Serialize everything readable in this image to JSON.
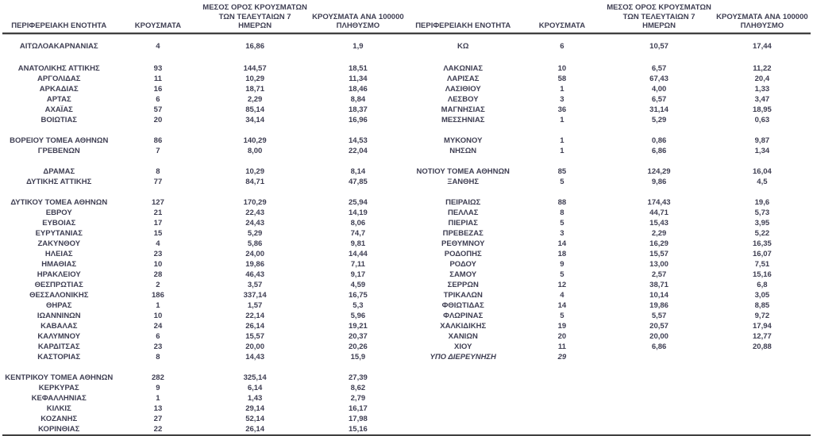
{
  "header": {
    "col_region": "ΠΕΡΙΦΕΡΕΙΑΚΗ ΕΝΟΤΗΤΑ",
    "col_cases": "ΚΡΟΥΣΜΑΤΑ",
    "col_avg_line1": "ΜΕΣΟΣ ΟΡΟΣ ΚΡΟΥΣΜΑΤΩΝ",
    "col_avg_line2": "ΤΩΝ ΤΕΛΕΥΤΑΙΩΝ 7",
    "col_avg_line3": "ΗΜΕΡΩΝ",
    "col_rate_line1": "ΚΡΟΥΣΜΑΤΑ ΑΝΑ 100000",
    "col_rate_line2": "ΠΛΗΘΥΣΜΟ"
  },
  "colors": {
    "text": "#3e3e52",
    "rule_dark": "#3f3f3f",
    "rule_light": "#c2c2c2",
    "background": "#ffffff"
  },
  "left_rows": [
    {
      "cells": [
        "ΑΙΤΩΛΟΑΚΑΡΝΑΝΙΑΣ",
        "4",
        "16,86",
        "1,9"
      ]
    },
    null,
    {
      "cells": [
        "ΑΝΑΤΟΛΙΚΗΣ ΑΤΤΙΚΗΣ",
        "93",
        "144,57",
        "18,51"
      ]
    },
    {
      "cells": [
        "ΑΡΓΟΛΙΔΑΣ",
        "11",
        "10,29",
        "11,34"
      ]
    },
    {
      "cells": [
        "ΑΡΚΑΔΙΑΣ",
        "16",
        "18,71",
        "18,46"
      ]
    },
    {
      "cells": [
        "ΑΡΤΑΣ",
        "6",
        "2,29",
        "8,84"
      ]
    },
    {
      "cells": [
        "ΑΧΑΪΑΣ",
        "57",
        "85,14",
        "18,37"
      ]
    },
    {
      "cells": [
        "ΒΟΙΩΤΙΑΣ",
        "20",
        "34,14",
        "16,96"
      ]
    },
    null,
    {
      "cells": [
        "ΒΟΡΕΙΟΥ ΤΟΜΕΑ ΑΘΗΝΩΝ",
        "86",
        "140,29",
        "14,53"
      ]
    },
    {
      "cells": [
        "ΓΡΕΒΕΝΩΝ",
        "7",
        "8,00",
        "22,04"
      ]
    },
    null,
    {
      "cells": [
        "ΔΡΑΜΑΣ",
        "8",
        "10,29",
        "8,14"
      ]
    },
    {
      "cells": [
        "ΔΥΤΙΚΗΣ ΑΤΤΙΚΗΣ",
        "77",
        "84,71",
        "47,85"
      ]
    },
    null,
    {
      "cells": [
        "ΔΥΤΙΚΟΥ ΤΟΜΕΑ ΑΘΗΝΩΝ",
        "127",
        "170,29",
        "25,94"
      ]
    },
    {
      "cells": [
        "ΕΒΡΟΥ",
        "21",
        "22,43",
        "14,19"
      ]
    },
    {
      "cells": [
        "ΕΥΒΟΙΑΣ",
        "17",
        "24,43",
        "8,06"
      ]
    },
    {
      "cells": [
        "ΕΥΡΥΤΑΝΙΑΣ",
        "15",
        "5,29",
        "74,7"
      ]
    },
    {
      "cells": [
        "ΖΑΚΥΝΘΟΥ",
        "4",
        "5,86",
        "9,81"
      ]
    },
    {
      "cells": [
        "ΗΛΕΙΑΣ",
        "23",
        "24,00",
        "14,44"
      ]
    },
    {
      "cells": [
        "ΗΜΑΘΙΑΣ",
        "10",
        "19,86",
        "7,11"
      ]
    },
    {
      "cells": [
        "ΗΡΑΚΛΕΙΟΥ",
        "28",
        "46,43",
        "9,17"
      ]
    },
    {
      "cells": [
        "ΘΕΣΠΡΩΤΙΑΣ",
        "2",
        "3,57",
        "4,59"
      ]
    },
    {
      "cells": [
        "ΘΕΣΣΑΛΟΝΙΚΗΣ",
        "186",
        "337,14",
        "16,75"
      ]
    },
    {
      "cells": [
        "ΘΗΡΑΣ",
        "1",
        "1,57",
        "5,3"
      ]
    },
    {
      "cells": [
        "ΙΩΑΝΝΙΝΩΝ",
        "10",
        "22,14",
        "5,96"
      ]
    },
    {
      "cells": [
        "ΚΑΒΑΛΑΣ",
        "24",
        "26,14",
        "19,21"
      ]
    },
    {
      "cells": [
        "ΚΑΛΥΜΝΟΥ",
        "6",
        "15,57",
        "20,37"
      ]
    },
    {
      "cells": [
        "ΚΑΡΔΙΤΣΑΣ",
        "23",
        "20,00",
        "20,26"
      ]
    },
    {
      "cells": [
        "ΚΑΣΤΟΡΙΑΣ",
        "8",
        "14,43",
        "15,9"
      ]
    },
    null,
    {
      "cells": [
        "ΚΕΝΤΡΙΚΟΥ ΤΟΜΕΑ ΑΘΗΝΩΝ",
        "282",
        "325,14",
        "27,39"
      ]
    },
    {
      "cells": [
        "ΚΕΡΚΥΡΑΣ",
        "9",
        "6,14",
        "8,62"
      ]
    },
    {
      "cells": [
        "ΚΕΦΑΛΛΗΝΙΑΣ",
        "1",
        "1,43",
        "2,79"
      ]
    },
    {
      "cells": [
        "ΚΙΛΚΙΣ",
        "13",
        "29,14",
        "16,17"
      ]
    },
    {
      "cells": [
        "ΚΟΖΑΝΗΣ",
        "27",
        "52,14",
        "17,98"
      ]
    },
    {
      "cells": [
        "ΚΟΡΙΝΘΙΑΣ",
        "22",
        "26,14",
        "15,16"
      ]
    }
  ],
  "right_rows": [
    {
      "cells": [
        "ΚΩ",
        "6",
        "10,57",
        "17,44"
      ]
    },
    null,
    {
      "cells": [
        "ΛΑΚΩΝΙΑΣ",
        "10",
        "6,57",
        "11,22"
      ]
    },
    {
      "cells": [
        "ΛΑΡΙΣΑΣ",
        "58",
        "67,43",
        "20,4"
      ]
    },
    {
      "cells": [
        "ΛΑΣΙΘΙΟΥ",
        "1",
        "4,00",
        "1,33"
      ]
    },
    {
      "cells": [
        "ΛΕΣΒΟΥ",
        "3",
        "6,57",
        "3,47"
      ]
    },
    {
      "cells": [
        "ΜΑΓΝΗΣΙΑΣ",
        "36",
        "31,14",
        "18,95"
      ]
    },
    {
      "cells": [
        "ΜΕΣΣΗΝΙΑΣ",
        "1",
        "5,29",
        "0,63"
      ]
    },
    null,
    {
      "cells": [
        "ΜΥΚΟΝΟΥ",
        "1",
        "0,86",
        "9,87"
      ]
    },
    {
      "cells": [
        "ΝΗΣΩΝ",
        "1",
        "6,86",
        "1,34"
      ]
    },
    null,
    {
      "cells": [
        "ΝΟΤΙΟΥ ΤΟΜΕΑ ΑΘΗΝΩΝ",
        "85",
        "124,29",
        "16,04"
      ]
    },
    {
      "cells": [
        "ΞΑΝΘΗΣ",
        "5",
        "9,86",
        "4,5"
      ]
    },
    null,
    {
      "cells": [
        "ΠΕΙΡΑΙΩΣ",
        "88",
        "174,43",
        "19,6"
      ]
    },
    {
      "cells": [
        "ΠΕΛΛΑΣ",
        "8",
        "44,71",
        "5,73"
      ]
    },
    {
      "cells": [
        "ΠΙΕΡΙΑΣ",
        "5",
        "15,43",
        "3,95"
      ]
    },
    {
      "cells": [
        "ΠΡΕΒΕΖΑΣ",
        "3",
        "2,29",
        "5,22"
      ]
    },
    {
      "cells": [
        "ΡΕΘΥΜΝΟΥ",
        "14",
        "16,29",
        "16,35"
      ]
    },
    {
      "cells": [
        "ΡΟΔΟΠΗΣ",
        "18",
        "15,57",
        "16,07"
      ]
    },
    {
      "cells": [
        "ΡΟΔΟΥ",
        "9",
        "13,00",
        "7,51"
      ]
    },
    {
      "cells": [
        "ΣΑΜΟΥ",
        "5",
        "2,57",
        "15,16"
      ]
    },
    {
      "cells": [
        "ΣΕΡΡΩΝ",
        "12",
        "38,71",
        "6,8"
      ]
    },
    {
      "cells": [
        "ΤΡΙΚΑΛΩΝ",
        "4",
        "10,14",
        "3,05"
      ]
    },
    {
      "cells": [
        "ΦΘΙΩΤΙΔΑΣ",
        "14",
        "19,86",
        "8,85"
      ]
    },
    {
      "cells": [
        "ΦΛΩΡΙΝΑΣ",
        "5",
        "5,57",
        "9,72"
      ]
    },
    {
      "cells": [
        "ΧΑΛΚΙΔΙΚΗΣ",
        "19",
        "20,57",
        "17,94"
      ]
    },
    {
      "cells": [
        "ΧΑΝΙΩΝ",
        "20",
        "20,00",
        "12,77"
      ]
    },
    {
      "cells": [
        "ΧΙΟΥ",
        "11",
        "6,86",
        "20,88"
      ]
    },
    {
      "cells": [
        "ΥΠΟ ΔΙΕΡΕΥΝΗΣΗ",
        "29",
        "",
        ""
      ],
      "italic": true
    },
    null,
    null,
    null,
    null,
    null,
    null
  ]
}
